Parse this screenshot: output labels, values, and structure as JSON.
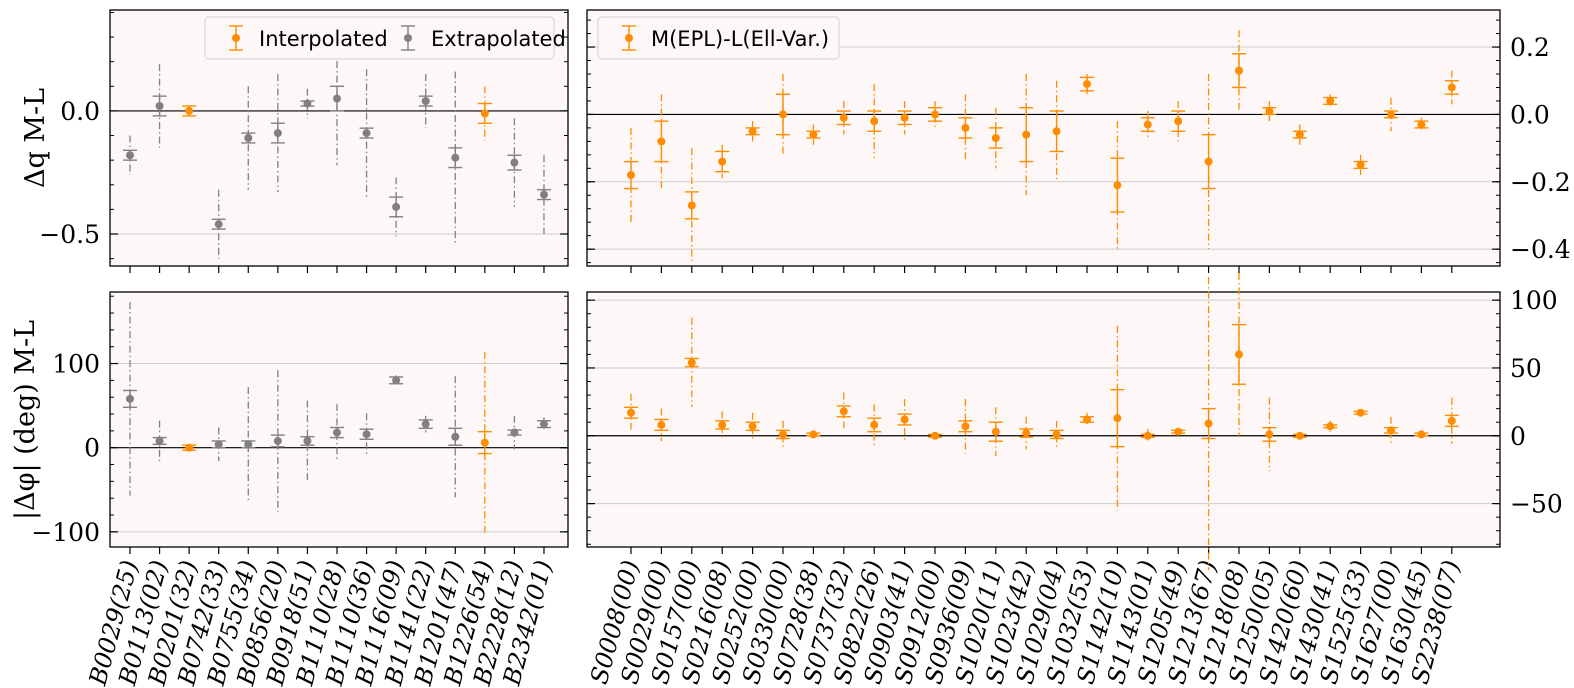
{
  "colors": {
    "interpolated": "#ff8c00",
    "extrapolated": "#808080",
    "panel_bg": "#fdf8f7",
    "grid": "#cccccc",
    "zero_line": "#000000"
  },
  "legends": {
    "top_left": [
      "Interpolated",
      "Extrapolated"
    ],
    "top_right": [
      "M(EPL)-L(Ell-Var.)"
    ]
  },
  "y_labels": {
    "top": "Δq M-L",
    "bottom": "|Δφ| (deg) M-L"
  },
  "chart_data": [
    {
      "type": "scatter",
      "panel": "top-left",
      "ylabel": "Δq M-L",
      "ylim": [
        -0.63,
        0.41
      ],
      "yticks": [
        -0.5,
        0.0
      ],
      "ytick_labels": [
        "−0.5",
        "0.0"
      ],
      "categories": [
        "B0029(25)",
        "B0113(02)",
        "B0201(32)",
        "B0742(33)",
        "B0755(34)",
        "B0856(20)",
        "B0918(51)",
        "B1110(28)",
        "B1110(36)",
        "B1116(09)",
        "B1141(22)",
        "B1201(47)",
        "B1226(54)",
        "B2228(12)",
        "B2342(01)"
      ],
      "legend": [
        "Interpolated",
        "Extrapolated"
      ],
      "legend_position": "top-right",
      "grid": true,
      "series": [
        {
          "name": "Interpolated",
          "indices": [
            2,
            12
          ],
          "values": [
            0.0,
            -0.01
          ],
          "err_inner": [
            0.02,
            0.04
          ],
          "err_outer": [
            0.02,
            0.11
          ]
        },
        {
          "name": "Extrapolated",
          "indices": [
            0,
            1,
            3,
            4,
            5,
            6,
            7,
            8,
            9,
            10,
            11,
            13,
            14
          ],
          "values": [
            -0.18,
            0.02,
            -0.46,
            -0.11,
            -0.09,
            0.03,
            0.05,
            -0.09,
            -0.39,
            0.04,
            -0.19,
            -0.21,
            -0.34
          ],
          "err_inner": [
            0.02,
            0.04,
            0.02,
            0.02,
            0.04,
            0.01,
            0.05,
            0.02,
            0.04,
            0.02,
            0.04,
            0.03,
            0.02
          ],
          "err_outer": [
            0.08,
            0.17,
            0.14,
            0.21,
            0.24,
            0.06,
            0.27,
            0.26,
            0.12,
            0.11,
            0.35,
            0.18,
            0.16
          ]
        }
      ]
    },
    {
      "type": "scatter",
      "panel": "top-right",
      "ylim": [
        -0.45,
        0.31
      ],
      "yticks": [
        -0.4,
        -0.2,
        0.0,
        0.2
      ],
      "ytick_labels": [
        "−0.4",
        "−0.2",
        "0.0",
        "0.2"
      ],
      "categories": [
        "S0008(00)",
        "S0029(00)",
        "S0157(00)",
        "S0216(08)",
        "S0252(00)",
        "S0330(00)",
        "S0728(38)",
        "S0737(32)",
        "S0822(26)",
        "S0903(41)",
        "S0912(00)",
        "S0936(09)",
        "S1020(11)",
        "S1023(42)",
        "S1029(04)",
        "S1032(53)",
        "S1142(10)",
        "S1143(01)",
        "S1205(49)",
        "S1213(67)",
        "S1218(08)",
        "S1250(05)",
        "S1420(60)",
        "S1430(41)",
        "S1525(33)",
        "S1627(00)",
        "S1630(45)",
        "S2238(07)"
      ],
      "legend": [
        "M(EPL)-L(Ell-Var.)"
      ],
      "legend_position": "top-left",
      "grid": true,
      "series": [
        {
          "name": "M(EPL)-L(Ell-Var.)",
          "values": [
            -0.18,
            -0.08,
            -0.27,
            -0.14,
            -0.05,
            0.0,
            -0.06,
            -0.01,
            -0.02,
            -0.01,
            0.0,
            -0.04,
            -0.07,
            -0.06,
            -0.05,
            0.09,
            -0.21,
            -0.03,
            -0.02,
            -0.14,
            0.13,
            0.01,
            -0.06,
            0.04,
            -0.15,
            0.0,
            -0.03,
            0.08
          ],
          "err_inner": [
            0.04,
            0.06,
            0.04,
            0.03,
            0.01,
            0.06,
            0.01,
            0.02,
            0.03,
            0.02,
            0.02,
            0.03,
            0.03,
            0.08,
            0.06,
            0.02,
            0.08,
            0.02,
            0.03,
            0.08,
            0.05,
            0.01,
            0.01,
            0.01,
            0.01,
            0.01,
            0.01,
            0.02
          ],
          "err_outer": [
            0.14,
            0.14,
            0.17,
            0.05,
            0.03,
            0.12,
            0.03,
            0.05,
            0.11,
            0.05,
            0.04,
            0.1,
            0.09,
            0.18,
            0.15,
            0.03,
            0.19,
            0.04,
            0.06,
            0.26,
            0.12,
            0.03,
            0.03,
            0.02,
            0.03,
            0.05,
            0.02,
            0.05
          ]
        }
      ]
    },
    {
      "type": "scatter",
      "panel": "bottom-left",
      "ylabel": "|Δφ| (deg) M-L",
      "ylim": [
        -118,
        185
      ],
      "yticks": [
        -100,
        0,
        100
      ],
      "ytick_labels": [
        "−100",
        "0",
        "100"
      ],
      "categories": [
        "B0029(25)",
        "B0113(02)",
        "B0201(32)",
        "B0742(33)",
        "B0755(34)",
        "B0856(20)",
        "B0918(51)",
        "B1110(28)",
        "B1110(36)",
        "B1116(09)",
        "B1141(22)",
        "B1201(47)",
        "B1226(54)",
        "B2228(12)",
        "B2342(01)"
      ],
      "grid": true,
      "series": [
        {
          "name": "Interpolated",
          "indices": [
            2,
            12
          ],
          "values": [
            0,
            6
          ],
          "err_inner": [
            3,
            13
          ],
          "err_outer": [
            4,
            108
          ]
        },
        {
          "name": "Extrapolated",
          "indices": [
            0,
            1,
            3,
            4,
            5,
            6,
            7,
            8,
            9,
            10,
            11,
            13,
            14
          ],
          "values": [
            58,
            8,
            4,
            4,
            8,
            8,
            18,
            16,
            80,
            28,
            13,
            18,
            28
          ],
          "err_inner": [
            10,
            4,
            4,
            4,
            7,
            5,
            6,
            6,
            4,
            5,
            10,
            3,
            4
          ],
          "err_outer": [
            115,
            24,
            20,
            68,
            84,
            48,
            34,
            25,
            6,
            10,
            72,
            20,
            8
          ]
        }
      ]
    },
    {
      "type": "scatter",
      "panel": "bottom-right",
      "ylim": [
        -82,
        106
      ],
      "yticks": [
        -50,
        0,
        50,
        100
      ],
      "ytick_labels": [
        "−50",
        "0",
        "50",
        "100"
      ],
      "categories": [
        "S0008(00)",
        "S0029(00)",
        "S0157(00)",
        "S0216(08)",
        "S0252(00)",
        "S0330(00)",
        "S0728(38)",
        "S0737(32)",
        "S0822(26)",
        "S0903(41)",
        "S0912(00)",
        "S0936(09)",
        "S1020(11)",
        "S1023(42)",
        "S1029(04)",
        "S1032(53)",
        "S1142(10)",
        "S1143(01)",
        "S1205(49)",
        "S1213(67)",
        "S1218(08)",
        "S1250(05)",
        "S1420(60)",
        "S1430(41)",
        "S1525(33)",
        "S1627(00)",
        "S1630(45)",
        "S2238(07)"
      ],
      "grid": true,
      "series": [
        {
          "name": "M(EPL)-L(Ell-Var.)",
          "values": [
            17,
            8,
            54,
            8,
            7,
            1,
            1,
            18,
            8,
            12,
            0,
            7,
            3,
            2,
            1,
            12,
            13,
            0,
            3,
            9,
            60,
            1,
            0,
            7,
            17,
            4,
            1,
            11
          ],
          "err_inner": [
            4,
            4,
            3,
            3,
            3,
            3,
            1,
            4,
            5,
            4,
            1,
            4,
            7,
            3,
            3,
            2,
            21,
            1,
            1,
            11,
            22,
            5,
            1,
            1,
            1,
            2,
            1,
            4
          ],
          "err_outer": [
            14,
            12,
            33,
            10,
            10,
            10,
            1,
            14,
            15,
            15,
            1,
            20,
            18,
            12,
            10,
            5,
            68,
            5,
            3,
            108,
            60,
            27,
            1,
            4,
            1,
            10,
            3,
            17
          ]
        }
      ]
    }
  ]
}
